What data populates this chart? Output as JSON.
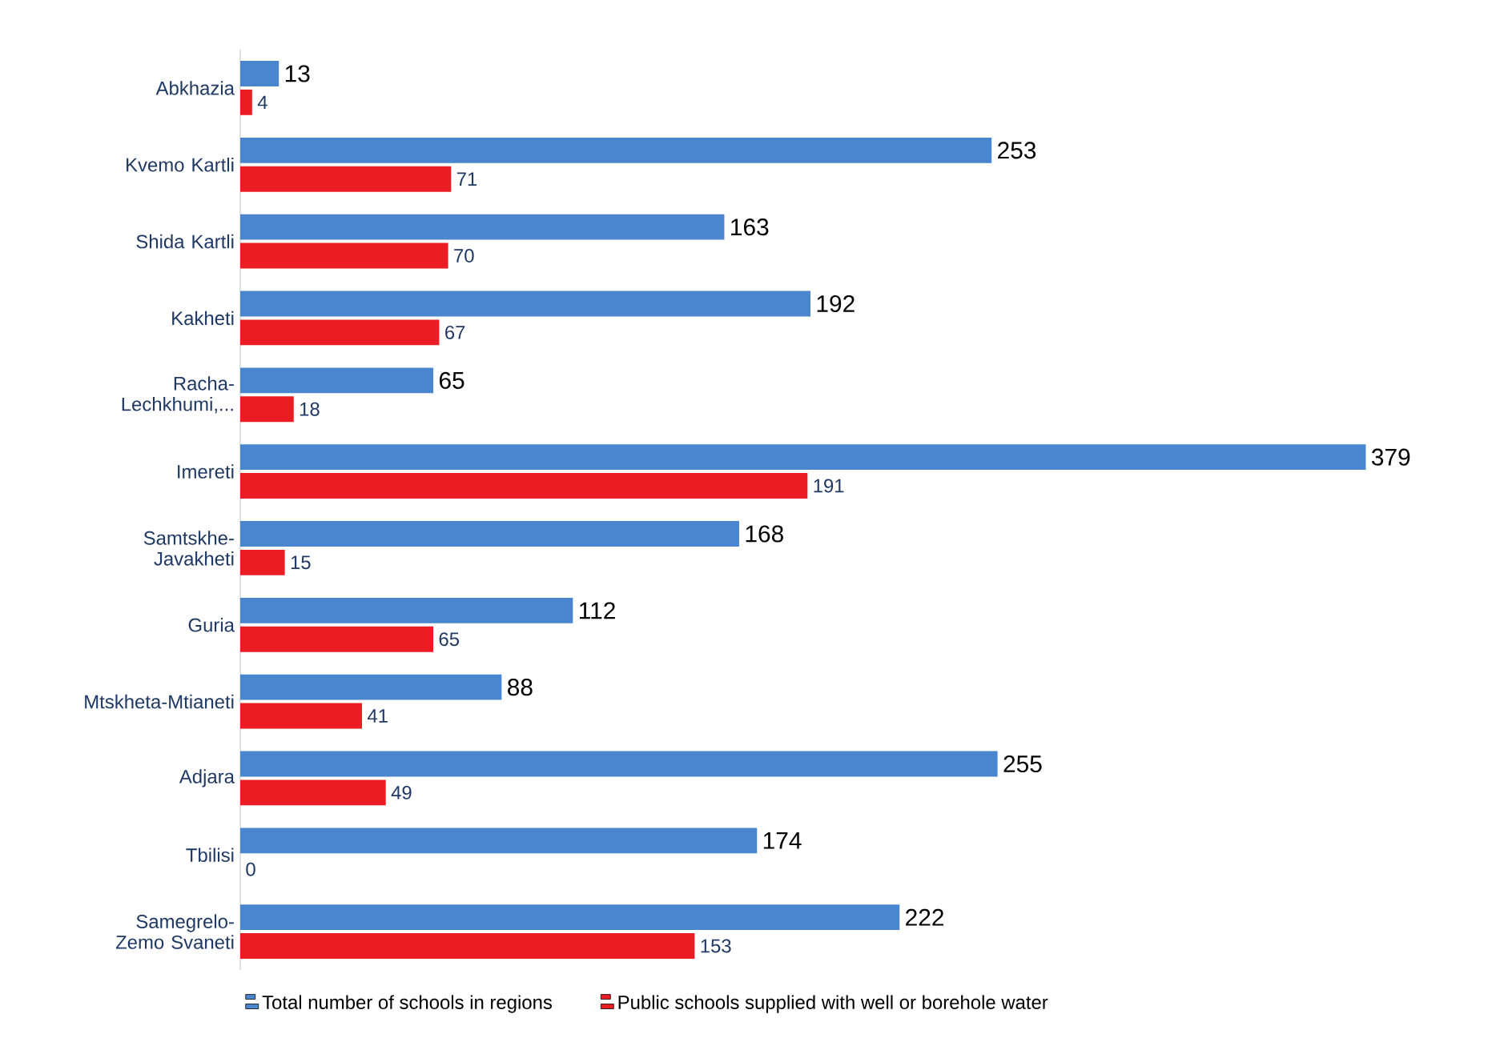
{
  "chart_data": {
    "type": "bar",
    "orientation": "horizontal",
    "categories": [
      "Abkhazia",
      "Kvemo Kartli",
      "Shida Kartli",
      "Kakheti",
      "Racha-Lechkhumi,...",
      "Imereti",
      "Samtskhe-Javakheti",
      "Guria",
      "Mtskheta-Mtianeti",
      "Adjara",
      "Tbilisi",
      "Samegrelo-Zemo Svaneti"
    ],
    "series": [
      {
        "name": "Total number of schools in regions",
        "color": "#4a86cf",
        "values": [
          13,
          253,
          163,
          192,
          65,
          379,
          168,
          112,
          88,
          255,
          174,
          222
        ]
      },
      {
        "name": "Public schools supplied with well or borehole water",
        "color": "#ec1c24",
        "values": [
          4,
          71,
          70,
          67,
          18,
          191,
          15,
          65,
          41,
          49,
          0,
          153
        ]
      }
    ],
    "data_labels": true,
    "legend": "bottom"
  }
}
